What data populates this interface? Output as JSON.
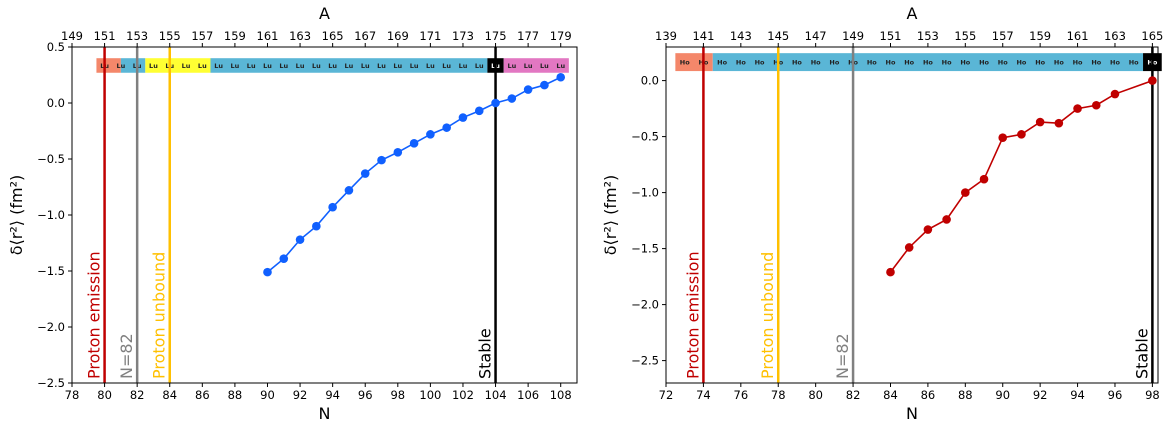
{
  "chart_data": [
    {
      "type": "line",
      "title": "",
      "xlabel": "N",
      "ylabel": "δ⟨r²⟩ (fm²)",
      "top_axis_label": "A",
      "element": "Lu",
      "xlim": [
        78,
        109
      ],
      "ylim": [
        -2.5,
        0.5
      ],
      "xticks": [
        78,
        80,
        82,
        84,
        86,
        88,
        90,
        92,
        94,
        96,
        98,
        100,
        102,
        104,
        106,
        108
      ],
      "yticks": [
        -2.5,
        -2.0,
        -1.5,
        -1.0,
        -0.5,
        0.0,
        0.5
      ],
      "ytick_labels": [
        "−2.5",
        "−2.0",
        "−1.5",
        "−1.0",
        "−0.5",
        "0.0",
        "0.5"
      ],
      "top_ticks": [
        149,
        151,
        153,
        155,
        157,
        159,
        161,
        163,
        165,
        167,
        169,
        171,
        173,
        175,
        177,
        179
      ],
      "top_offset": 71,
      "nuclide_row": {
        "y": 0.335,
        "height": 0.13,
        "segments": [
          {
            "from": 79.5,
            "to": 81.0,
            "color": "#f4876a"
          },
          {
            "from": 81.0,
            "to": 82.5,
            "color": "#5ab6d6"
          },
          {
            "from": 82.5,
            "to": 86.5,
            "color": "#ffff33"
          },
          {
            "from": 86.5,
            "to": 103.5,
            "color": "#5ab6d6"
          },
          {
            "from": 103.5,
            "to": 104.5,
            "color": "#000000"
          },
          {
            "from": 104.5,
            "to": 108.5,
            "color": "#e277c2"
          }
        ],
        "labels": [
          {
            "n": 80,
            "text": "Lu"
          },
          {
            "n": 81,
            "text": "Lu"
          },
          {
            "n": 82,
            "text": "Lu"
          },
          {
            "n": 83,
            "text": "Lu"
          },
          {
            "n": 84,
            "text": "Lu"
          },
          {
            "n": 85,
            "text": "Lu"
          },
          {
            "n": 86,
            "text": "Lu"
          },
          {
            "n": 87,
            "text": "Lu"
          },
          {
            "n": 88,
            "text": "Lu"
          },
          {
            "n": 89,
            "text": "Lu"
          },
          {
            "n": 90,
            "text": "Lu"
          },
          {
            "n": 91,
            "text": "Lu"
          },
          {
            "n": 92,
            "text": "Lu"
          },
          {
            "n": 93,
            "text": "Lu"
          },
          {
            "n": 94,
            "text": "Lu"
          },
          {
            "n": 95,
            "text": "Lu"
          },
          {
            "n": 96,
            "text": "Lu"
          },
          {
            "n": 97,
            "text": "Lu"
          },
          {
            "n": 98,
            "text": "Lu"
          },
          {
            "n": 99,
            "text": "Lu"
          },
          {
            "n": 100,
            "text": "Lu"
          },
          {
            "n": 101,
            "text": "Lu"
          },
          {
            "n": 102,
            "text": "Lu"
          },
          {
            "n": 103,
            "text": "Lu"
          },
          {
            "n": 104,
            "text": "Lu"
          },
          {
            "n": 105,
            "text": "Lu"
          },
          {
            "n": 106,
            "text": "Lu"
          },
          {
            "n": 107,
            "text": "Lu"
          },
          {
            "n": 108,
            "text": "Lu"
          }
        ]
      },
      "vlines": [
        {
          "x": 80,
          "color": "#c00000",
          "label": "Proton emission",
          "label_color": "#c00000"
        },
        {
          "x": 82,
          "color": "#808080",
          "label": "N=82",
          "label_color": "#808080"
        },
        {
          "x": 84,
          "color": "#ffc000",
          "label": "Proton unbound",
          "label_color": "#ffc000"
        },
        {
          "x": 104,
          "color": "#000000",
          "label": "Stable",
          "label_color": "#000000"
        }
      ],
      "series": [
        {
          "color": "#1060ff",
          "x": [
            90,
            91,
            92,
            93,
            94,
            95,
            96,
            97,
            98,
            99,
            100,
            101,
            102,
            103,
            104,
            105,
            106,
            107,
            108
          ],
          "y": [
            -1.51,
            -1.39,
            -1.22,
            -1.1,
            -0.93,
            -0.78,
            -0.63,
            -0.51,
            -0.44,
            -0.36,
            -0.28,
            -0.22,
            -0.13,
            -0.07,
            0.0,
            0.04,
            0.12,
            0.16,
            0.23
          ]
        }
      ]
    },
    {
      "type": "line",
      "title": "",
      "xlabel": "N",
      "ylabel": "δ⟨r²⟩ (fm²)",
      "top_axis_label": "A",
      "element": "Ho",
      "xlim": [
        72,
        98.3
      ],
      "ylim": [
        -2.7,
        0.3
      ],
      "xticks": [
        72,
        74,
        76,
        78,
        80,
        82,
        84,
        86,
        88,
        90,
        92,
        94,
        96,
        98
      ],
      "yticks": [
        -2.5,
        -2.0,
        -1.5,
        -1.0,
        -0.5,
        0.0
      ],
      "ytick_labels": [
        "−2.5",
        "−2.0",
        "−1.5",
        "−1.0",
        "−0.5",
        "0.0"
      ],
      "top_ticks": [
        139,
        141,
        143,
        145,
        147,
        149,
        151,
        153,
        155,
        157,
        159,
        161,
        163,
        165
      ],
      "top_offset": 67,
      "nuclide_row": {
        "y": 0.165,
        "height": 0.16,
        "segments": [
          {
            "from": 72.5,
            "to": 74.5,
            "color": "#f4876a"
          },
          {
            "from": 74.5,
            "to": 97.5,
            "color": "#5ab6d6"
          },
          {
            "from": 97.5,
            "to": 98.5,
            "color": "#000000"
          }
        ],
        "labels": [
          {
            "n": 73,
            "text": "Ho"
          },
          {
            "n": 74,
            "text": "Ho"
          },
          {
            "n": 75,
            "text": "Ho"
          },
          {
            "n": 76,
            "text": "Ho"
          },
          {
            "n": 77,
            "text": "Ho"
          },
          {
            "n": 78,
            "text": "Ho"
          },
          {
            "n": 79,
            "text": "Ho"
          },
          {
            "n": 80,
            "text": "Ho"
          },
          {
            "n": 81,
            "text": "Ho"
          },
          {
            "n": 82,
            "text": "Ho"
          },
          {
            "n": 83,
            "text": "Ho"
          },
          {
            "n": 84,
            "text": "Ho"
          },
          {
            "n": 85,
            "text": "Ho"
          },
          {
            "n": 86,
            "text": "Ho"
          },
          {
            "n": 87,
            "text": "Ho"
          },
          {
            "n": 88,
            "text": "Ho"
          },
          {
            "n": 89,
            "text": "Ho"
          },
          {
            "n": 90,
            "text": "Ho"
          },
          {
            "n": 91,
            "text": "Ho"
          },
          {
            "n": 92,
            "text": "Ho"
          },
          {
            "n": 93,
            "text": "Ho"
          },
          {
            "n": 94,
            "text": "Ho"
          },
          {
            "n": 95,
            "text": "Ho"
          },
          {
            "n": 96,
            "text": "Ho"
          },
          {
            "n": 97,
            "text": "Ho"
          },
          {
            "n": 98,
            "text": "Ho"
          }
        ]
      },
      "vlines": [
        {
          "x": 74,
          "color": "#c00000",
          "label": "Proton emission",
          "label_color": "#c00000"
        },
        {
          "x": 78,
          "color": "#ffc000",
          "label": "Proton unbound",
          "label_color": "#ffc000"
        },
        {
          "x": 82,
          "color": "#808080",
          "label": "N=82",
          "label_color": "#808080"
        },
        {
          "x": 98,
          "color": "#000000",
          "label": "Stable",
          "label_color": "#000000"
        }
      ],
      "series": [
        {
          "color": "#c00000",
          "x": [
            84,
            85,
            86,
            87,
            88,
            89,
            90,
            91,
            92,
            93,
            94,
            95,
            96,
            98
          ],
          "y": [
            -1.71,
            -1.49,
            -1.33,
            -1.24,
            -1.0,
            -0.88,
            -0.51,
            -0.48,
            -0.37,
            -0.38,
            -0.25,
            -0.22,
            -0.12,
            0.0
          ]
        }
      ]
    }
  ]
}
